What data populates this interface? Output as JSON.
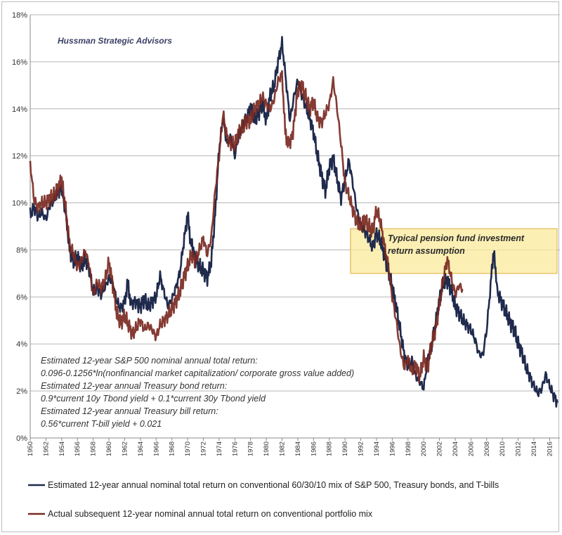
{
  "chart_data": {
    "type": "line",
    "title": "",
    "credit": "Hussman Strategic Advisors",
    "xlabel": "",
    "ylabel": "",
    "xlim": [
      1950,
      2017.3
    ],
    "ylim": [
      0,
      18
    ],
    "y_ticks": [
      "0%",
      "2%",
      "4%",
      "6%",
      "8%",
      "10%",
      "12%",
      "14%",
      "16%",
      "18%"
    ],
    "x_ticks": [
      "1950",
      "1952",
      "1954",
      "1956",
      "1958",
      "1960",
      "1962",
      "1964",
      "1966",
      "1968",
      "1970",
      "1972",
      "1974",
      "1976",
      "1978",
      "1980",
      "1982",
      "1984",
      "1986",
      "1988",
      "1990",
      "1992",
      "1994",
      "1996",
      "1998",
      "2000",
      "2002",
      "2004",
      "2006",
      "2008",
      "2010",
      "2012",
      "2014",
      "2016"
    ],
    "grid": true,
    "series": [
      {
        "name": "Estimated 12-year annual nominal total return on conventional 60/30/10 mix of S&P 500, Treasury bonds, and T-bills",
        "color": "#1f2a4d",
        "points": [
          [
            1950,
            9.5
          ],
          [
            1950.5,
            9.8
          ],
          [
            1951,
            9.4
          ],
          [
            1951.5,
            9.6
          ],
          [
            1952,
            9.3
          ],
          [
            1952.5,
            9.9
          ],
          [
            1953,
            10.1
          ],
          [
            1953.5,
            10.4
          ],
          [
            1954,
            10.6
          ],
          [
            1954.6,
            9.3
          ],
          [
            1955,
            8.0
          ],
          [
            1955.5,
            7.5
          ],
          [
            1956,
            7.7
          ],
          [
            1956.5,
            7.3
          ],
          [
            1957,
            7.6
          ],
          [
            1957.5,
            7.2
          ],
          [
            1958,
            6.2
          ],
          [
            1958.5,
            6.4
          ],
          [
            1959,
            6.1
          ],
          [
            1959.5,
            6.4
          ],
          [
            1960,
            6.8
          ],
          [
            1960.5,
            6.6
          ],
          [
            1961,
            5.8
          ],
          [
            1961.5,
            5.5
          ],
          [
            1962,
            5.8
          ],
          [
            1962.4,
            6.6
          ],
          [
            1962.8,
            5.7
          ],
          [
            1963.3,
            5.8
          ],
          [
            1964,
            5.6
          ],
          [
            1964.5,
            5.9
          ],
          [
            1965,
            5.6
          ],
          [
            1965.5,
            5.8
          ],
          [
            1966,
            6.0
          ],
          [
            1966.5,
            6.9
          ],
          [
            1967,
            6.2
          ],
          [
            1967.5,
            5.6
          ],
          [
            1968,
            5.9
          ],
          [
            1968.5,
            6.4
          ],
          [
            1969,
            7.0
          ],
          [
            1969.5,
            8.3
          ],
          [
            1970,
            9.5
          ],
          [
            1970.3,
            8.5
          ],
          [
            1971,
            7.6
          ],
          [
            1971.5,
            7.3
          ],
          [
            1972,
            7.1
          ],
          [
            1972.5,
            6.8
          ],
          [
            1973,
            7.5
          ],
          [
            1973.5,
            9.5
          ],
          [
            1974,
            12.3
          ],
          [
            1974.5,
            13.6
          ],
          [
            1975,
            12.5
          ],
          [
            1975.5,
            12.8
          ],
          [
            1976,
            12.0
          ],
          [
            1976.5,
            12.9
          ],
          [
            1977,
            13.3
          ],
          [
            1977.5,
            13.6
          ],
          [
            1978,
            14.1
          ],
          [
            1978.5,
            13.5
          ],
          [
            1979,
            13.8
          ],
          [
            1979.5,
            14.2
          ],
          [
            1980,
            13.5
          ],
          [
            1980.5,
            14.6
          ],
          [
            1981,
            15.0
          ],
          [
            1981.5,
            16.0
          ],
          [
            1982,
            16.8
          ],
          [
            1982.5,
            15.2
          ],
          [
            1983,
            13.5
          ],
          [
            1983.5,
            14.5
          ],
          [
            1984,
            15.2
          ],
          [
            1984.5,
            14.6
          ],
          [
            1985,
            14.1
          ],
          [
            1985.5,
            13.6
          ],
          [
            1986,
            13.0
          ],
          [
            1986.5,
            12.0
          ],
          [
            1987,
            11.2
          ],
          [
            1987.5,
            10.5
          ],
          [
            1988,
            11.5
          ],
          [
            1988.5,
            11.9
          ],
          [
            1989,
            11.0
          ],
          [
            1989.5,
            10.2
          ],
          [
            1990,
            11.0
          ],
          [
            1990.5,
            11.8
          ],
          [
            1991,
            10.8
          ],
          [
            1991.5,
            9.7
          ],
          [
            1992,
            9.0
          ],
          [
            1992.5,
            8.8
          ],
          [
            1993,
            8.5
          ],
          [
            1993.5,
            8.1
          ],
          [
            1994,
            8.7
          ],
          [
            1994.5,
            8.4
          ],
          [
            1995,
            7.8
          ],
          [
            1995.5,
            7.1
          ],
          [
            1996,
            6.4
          ],
          [
            1996.5,
            5.6
          ],
          [
            1997,
            4.6
          ],
          [
            1997.5,
            3.6
          ],
          [
            1998,
            3.0
          ],
          [
            1998.5,
            3.3
          ],
          [
            1999,
            2.6
          ],
          [
            1999.5,
            2.4
          ],
          [
            2000,
            2.1
          ],
          [
            2000.5,
            3.4
          ],
          [
            2001,
            3.9
          ],
          [
            2001.5,
            4.9
          ],
          [
            2002,
            5.9
          ],
          [
            2002.5,
            6.6
          ],
          [
            2003,
            6.7
          ],
          [
            2003.5,
            6.3
          ],
          [
            2004,
            5.6
          ],
          [
            2004.5,
            5.3
          ],
          [
            2005,
            5.0
          ],
          [
            2005.5,
            4.8
          ],
          [
            2006,
            4.6
          ],
          [
            2006.5,
            4.2
          ],
          [
            2007,
            3.6
          ],
          [
            2007.5,
            3.5
          ],
          [
            2008,
            4.6
          ],
          [
            2008.5,
            6.5
          ],
          [
            2008.9,
            8.1
          ],
          [
            2009.2,
            6.6
          ],
          [
            2009.5,
            6.1
          ],
          [
            2010,
            5.7
          ],
          [
            2010.5,
            5.3
          ],
          [
            2011,
            4.9
          ],
          [
            2011.5,
            4.6
          ],
          [
            2012,
            4.0
          ],
          [
            2012.5,
            3.6
          ],
          [
            2013,
            3.0
          ],
          [
            2013.5,
            2.6
          ],
          [
            2014,
            2.2
          ],
          [
            2014.5,
            1.9
          ],
          [
            2015,
            2.1
          ],
          [
            2015.5,
            2.7
          ],
          [
            2016,
            2.2
          ],
          [
            2016.5,
            1.8
          ],
          [
            2017,
            1.5
          ]
        ]
      },
      {
        "name": "Actual subsequent 12-year nominal annual total return on conventional portfolio mix",
        "color": "#7a2a22",
        "points": [
          [
            1950,
            11.7
          ],
          [
            1950.5,
            10.1
          ],
          [
            1951,
            9.8
          ],
          [
            1951.5,
            10.0
          ],
          [
            1952,
            10.0
          ],
          [
            1952.5,
            10.2
          ],
          [
            1953,
            10.3
          ],
          [
            1953.5,
            10.6
          ],
          [
            1954,
            11.0
          ],
          [
            1954.6,
            9.5
          ],
          [
            1955,
            8.2
          ],
          [
            1955.5,
            7.8
          ],
          [
            1956,
            7.3
          ],
          [
            1956.5,
            7.5
          ],
          [
            1957,
            8.0
          ],
          [
            1957.5,
            7.3
          ],
          [
            1958,
            6.1
          ],
          [
            1958.5,
            6.6
          ],
          [
            1959,
            6.4
          ],
          [
            1959.5,
            6.7
          ],
          [
            1960,
            7.5
          ],
          [
            1960.5,
            6.5
          ],
          [
            1961,
            5.3
          ],
          [
            1961.5,
            4.9
          ],
          [
            1962,
            5.2
          ],
          [
            1962.5,
            4.8
          ],
          [
            1963,
            4.4
          ],
          [
            1963.5,
            4.7
          ],
          [
            1964,
            5.0
          ],
          [
            1964.5,
            4.6
          ],
          [
            1965,
            4.8
          ],
          [
            1965.5,
            4.6
          ],
          [
            1966,
            4.3
          ],
          [
            1966.5,
            4.8
          ],
          [
            1967,
            5.0
          ],
          [
            1967.5,
            5.2
          ],
          [
            1968,
            5.5
          ],
          [
            1968.5,
            5.8
          ],
          [
            1969,
            6.2
          ],
          [
            1969.5,
            6.8
          ],
          [
            1970,
            7.3
          ],
          [
            1970.5,
            7.8
          ],
          [
            1971,
            7.5
          ],
          [
            1971.5,
            8.0
          ],
          [
            1972,
            8.5
          ],
          [
            1972.5,
            7.8
          ],
          [
            1973,
            8.5
          ],
          [
            1973.5,
            10.5
          ],
          [
            1974,
            12.0
          ],
          [
            1974.5,
            13.8
          ],
          [
            1975,
            12.8
          ],
          [
            1975.5,
            12.5
          ],
          [
            1976,
            12.5
          ],
          [
            1976.5,
            13.0
          ],
          [
            1977,
            13.2
          ],
          [
            1977.5,
            13.5
          ],
          [
            1978,
            13.5
          ],
          [
            1978.5,
            14.0
          ],
          [
            1979,
            14.2
          ],
          [
            1979.5,
            14.5
          ],
          [
            1980,
            14.2
          ],
          [
            1980.5,
            14.0
          ],
          [
            1981,
            14.4
          ],
          [
            1981.5,
            15.2
          ],
          [
            1982,
            15.5
          ],
          [
            1982.4,
            13.0
          ],
          [
            1982.8,
            12.5
          ],
          [
            1983.3,
            12.8
          ],
          [
            1984,
            14.8
          ],
          [
            1984.5,
            15.0
          ],
          [
            1985,
            14.5
          ],
          [
            1985.5,
            14.0
          ],
          [
            1986,
            14.3
          ],
          [
            1986.5,
            13.6
          ],
          [
            1987,
            13.4
          ],
          [
            1987.5,
            13.8
          ],
          [
            1988,
            14.2
          ],
          [
            1988.5,
            15.2
          ],
          [
            1989,
            14.0
          ],
          [
            1989.5,
            12.5
          ],
          [
            1990,
            10.8
          ],
          [
            1990.5,
            10.3
          ],
          [
            1991,
            9.7
          ],
          [
            1991.5,
            9.2
          ],
          [
            1992,
            9.0
          ],
          [
            1992.5,
            9.3
          ],
          [
            1993,
            9.0
          ],
          [
            1993.5,
            8.8
          ],
          [
            1994,
            9.7
          ],
          [
            1994.5,
            9.2
          ],
          [
            1995,
            8.2
          ],
          [
            1995.5,
            7.3
          ],
          [
            1996,
            6.0
          ],
          [
            1996.5,
            5.0
          ],
          [
            1997,
            3.8
          ],
          [
            1997.5,
            3.0
          ],
          [
            1998,
            3.4
          ],
          [
            1998.5,
            2.8
          ],
          [
            1999,
            3.1
          ],
          [
            1999.5,
            2.6
          ],
          [
            2000,
            3.4
          ],
          [
            2000.5,
            3.0
          ],
          [
            2001,
            4.0
          ],
          [
            2001.5,
            4.6
          ],
          [
            2002,
            5.7
          ],
          [
            2002.5,
            6.8
          ],
          [
            2003,
            7.6
          ],
          [
            2003.5,
            6.8
          ],
          [
            2004,
            6.1
          ],
          [
            2004.5,
            6.5
          ],
          [
            2005,
            6.3
          ]
        ]
      }
    ],
    "annotations": {
      "box_label_lines": [
        "Typical pension fund investment",
        "return assumption"
      ],
      "box_range": [
        7.0,
        8.9
      ],
      "box_x_range": [
        1990.7,
        2017.3
      ],
      "notes": [
        "Estimated 12-year S&P 500  nominal annual total return:",
        "0.096-0.1256*ln(nonfinancial market capitalization/ corporate gross value added)",
        "Estimated 12-year annual Treasury bond return:",
        "0.9*current 10y Tbond yield + 0.1*current 30y Tbond yield",
        "Estimated 12-year annual Treasury bill return:",
        "0.56*current T-bill yield + 0.021"
      ]
    },
    "legend_position": "bottom"
  },
  "colors": {
    "estimated": "#1f2a4d",
    "actual": "#7a2a22",
    "box_fill": "#fbe99b",
    "box_stroke": "#e9c46a"
  }
}
